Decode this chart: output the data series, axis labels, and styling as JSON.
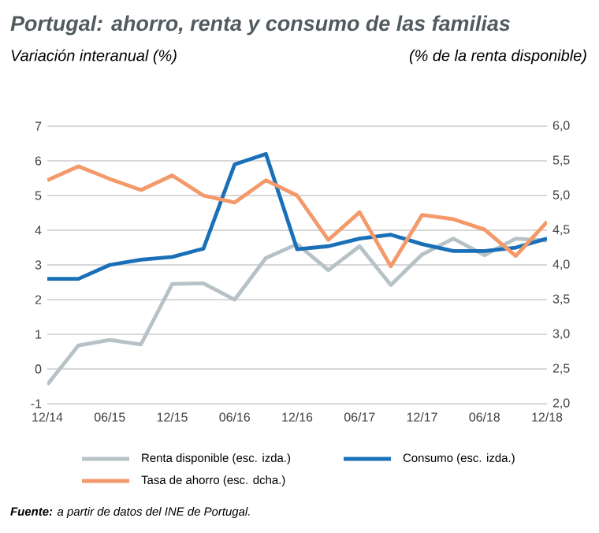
{
  "chart_data": {
    "type": "line",
    "title": "Portugal: ahorro, renta y consumo de las familias",
    "ylabel": "Variación interanual (%)",
    "y2label": "(% de la renta disponible)",
    "categories": [
      "12/14",
      null,
      "06/15",
      null,
      "12/15",
      null,
      "06/16",
      null,
      "12/16",
      null,
      "06/17",
      null,
      "12/17",
      null,
      "06/18",
      null,
      "12/18"
    ],
    "series": [
      {
        "name": "Renta disponible (esc. izda.)",
        "color": "#b7c2c7",
        "values": [
          -0.45,
          0.68,
          0.84,
          0.71,
          2.45,
          2.47,
          2.0,
          3.2,
          3.6,
          2.85,
          3.54,
          2.42,
          3.3,
          3.76,
          3.28,
          3.76,
          3.7
        ]
      },
      {
        "name": "Consumo (esc. izda.)",
        "color": "#1a70b8",
        "values": [
          2.6,
          2.6,
          3.0,
          3.15,
          3.23,
          3.47,
          5.9,
          6.2,
          3.45,
          3.54,
          3.76,
          3.87,
          3.6,
          3.4,
          3.4,
          3.5,
          3.76
        ]
      },
      {
        "name": "Tasa de ahorro (esc. dcha.)",
        "color": "#f4996a",
        "axis": "y2",
        "values": [
          5.22,
          5.42,
          5.24,
          5.08,
          5.29,
          5.0,
          4.9,
          5.22,
          5.0,
          4.36,
          4.76,
          3.98,
          4.72,
          4.66,
          4.51,
          4.13,
          4.62
        ]
      }
    ],
    "ylim": [
      -1,
      7
    ],
    "yticks": [
      -1,
      0,
      1,
      2,
      3,
      4,
      5,
      6,
      7
    ],
    "y2lim": [
      2,
      6
    ],
    "y2ticks": [
      {
        "value": 2,
        "label": "2,0"
      },
      {
        "value": 2.5,
        "label": "2,5"
      },
      {
        "value": 3,
        "label": "3,0"
      },
      {
        "value": 3.5,
        "label": "3,5"
      },
      {
        "value": 4,
        "label": "4,0"
      },
      {
        "value": 4.5,
        "label": "4,5"
      },
      {
        "value": 5,
        "label": "5,0"
      },
      {
        "value": 5.5,
        "label": "5,5"
      },
      {
        "value": 6,
        "label": "6,0"
      }
    ],
    "grid": "y",
    "legend": "bottom",
    "annotations": [
      "**Fuente:** a partir de datos del INE de Portugal."
    ]
  }
}
